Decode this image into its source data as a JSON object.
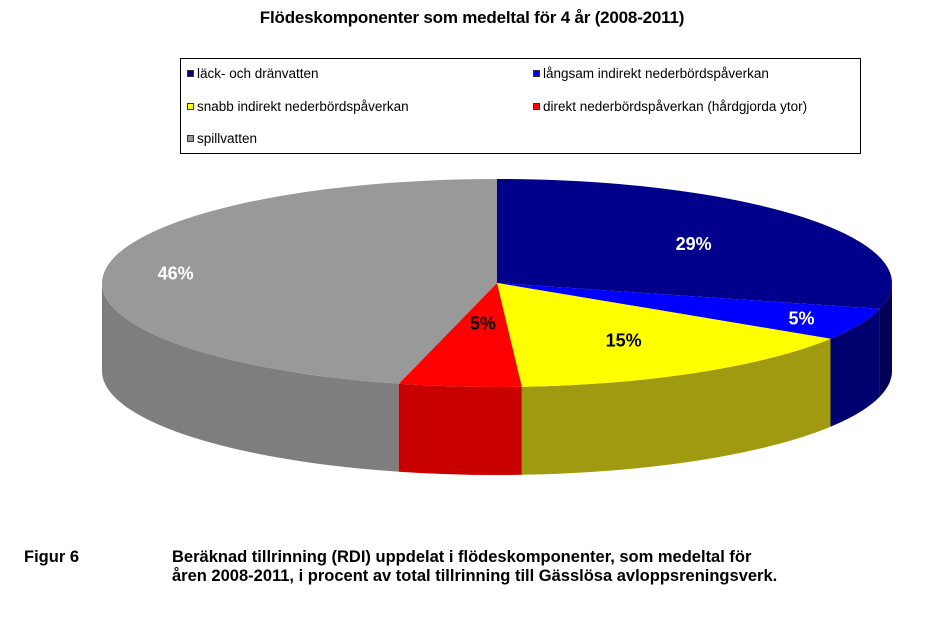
{
  "chart_data": {
    "type": "pie",
    "title": "Flödeskomponenter som medeltal för 4 år (2008-2011)",
    "slices": [
      {
        "name": "läck- och dränvatten",
        "value": 29,
        "label": "29%",
        "color": "#00008b",
        "side": "#000055"
      },
      {
        "name": "långsam indirekt nederbördspåverkan",
        "value": 5,
        "label": "5%",
        "color": "#0000ff",
        "side": "#00006e"
      },
      {
        "name": "snabb indirekt nederbördspåverkan",
        "value": 15,
        "label": "15%",
        "color": "#ffff00",
        "side": "#a09a10"
      },
      {
        "name": "direkt nederbördspåverkan (hårdgjorda ytor)",
        "value": 5,
        "label": "5%",
        "color": "#ff0000",
        "side": "#c80000"
      },
      {
        "name": "spillvatten",
        "value": 46,
        "label": "46%",
        "color": "#999999",
        "side": "#7e7e7e"
      }
    ],
    "legend_position": "top"
  },
  "caption": {
    "figure_label": "Figur 6",
    "line1": "Beräknad tillrinning (RDI) uppdelat i flödeskomponenter, som medeltal för",
    "line2": "åren 2008-2011, i procent av total tillrinning till Gässlösa avloppsreningsverk."
  }
}
